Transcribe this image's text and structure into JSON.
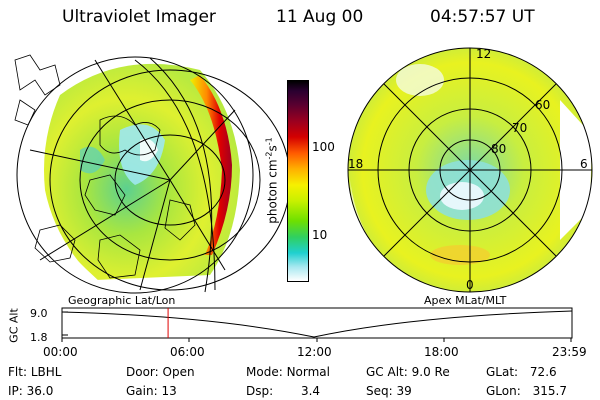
{
  "header": {
    "title": "Ultraviolet Imager",
    "date": "11 Aug 00",
    "time": "04:57:57 UT"
  },
  "left_panel": {
    "caption": "Geographic Lat/Lon"
  },
  "right_panel": {
    "caption": "Apex MLat/MLT",
    "mlt_labels": [
      "12",
      "18",
      "6",
      "0"
    ],
    "lat_labels": [
      "60",
      "70",
      "80"
    ]
  },
  "colorbar": {
    "unit": "photon cm",
    "unit_sup1": "-2",
    "unit_mid": "s",
    "unit_sup2": "-1",
    "ticks": [
      "100",
      "10"
    ],
    "colors": [
      "#000000",
      "#2a0030",
      "#5a0030",
      "#9a0020",
      "#d40000",
      "#ff5a00",
      "#ffb000",
      "#f6f000",
      "#c8f000",
      "#6ee000",
      "#30d060",
      "#20d0d0",
      "#a8e8f0",
      "#ffffff"
    ]
  },
  "altitude_plot": {
    "ylabel": "GC Alt",
    "yticks": [
      "9.0",
      "1.8"
    ],
    "xticks": [
      "00:00",
      "06:00",
      "12:00",
      "18:00",
      "23:59"
    ],
    "current_time_fraction": 0.208
  },
  "status": {
    "row1": [
      {
        "label": "Flt:",
        "value": "LBHL"
      },
      {
        "label": "Door:",
        "value": "Open"
      },
      {
        "label": "Mode:",
        "value": "Normal"
      },
      {
        "label": "GC Alt:",
        "value": "9.0 Re"
      },
      {
        "label": "GLat:",
        "value": "72.6"
      }
    ],
    "row2": [
      {
        "label": "IP:",
        "value": "36.0"
      },
      {
        "label": "Gain:",
        "value": "13"
      },
      {
        "label": "Dsp:",
        "value": "3.4"
      },
      {
        "label": "Seq:",
        "value": "39"
      },
      {
        "label": "GLon:",
        "value": "315.7"
      }
    ]
  }
}
